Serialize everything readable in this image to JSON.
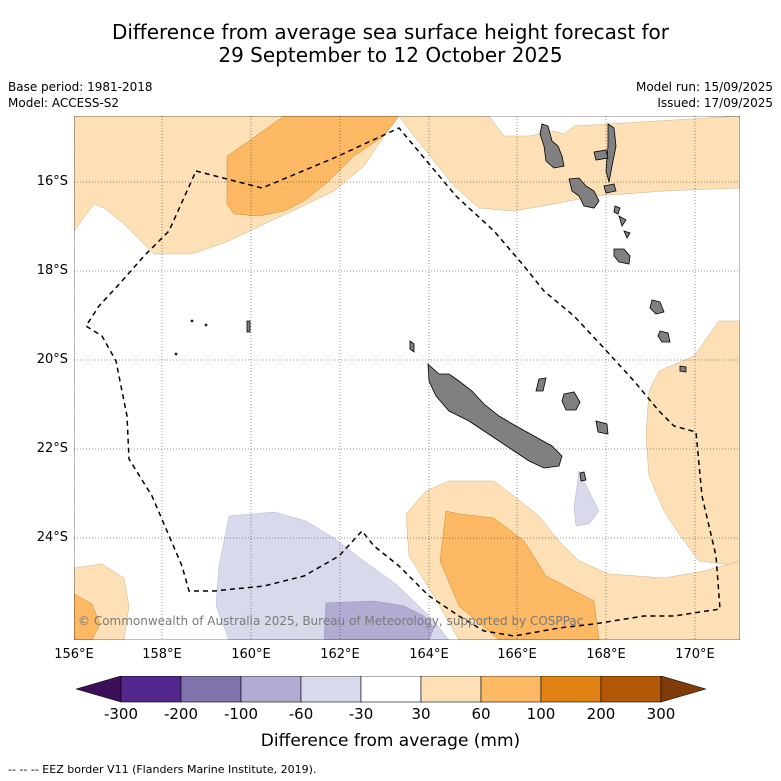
{
  "title_line1": "Difference from average sea surface height forecast for",
  "title_line2": "29 September to 12 October 2025",
  "base_period": "Base period: 1981-2018",
  "model": "Model: ACCESS-S2",
  "model_run": "Model run: 15/09/2025",
  "issued": "Issued: 17/09/2025",
  "copyright": "© Commonwealth of Australia 2025, Bureau of Meteorology, supported by COSPPac",
  "lat_labels": [
    "16°S",
    "18°S",
    "20°S",
    "22°S",
    "24°S"
  ],
  "lon_labels": [
    "156°E",
    "158°E",
    "160°E",
    "162°E",
    "164°E",
    "166°E",
    "168°E",
    "170°E"
  ],
  "colorbar": {
    "ticks": [
      "-300",
      "-200",
      "-100",
      "-60",
      "-30",
      "30",
      "60",
      "100",
      "200",
      "300"
    ],
    "colors": [
      "#3c0f5a",
      "#54278f",
      "#8073ac",
      "#b2abd2",
      "#d8daeb",
      "#ffffff",
      "#fee0b6",
      "#fdb863",
      "#e08214",
      "#b35806",
      "#7f3b08"
    ],
    "label": "Difference from average (mm)"
  },
  "footer": "-- -- -- EEZ border V11 (Flanders Marine Institute, 2019).",
  "land_color": "#808080"
}
